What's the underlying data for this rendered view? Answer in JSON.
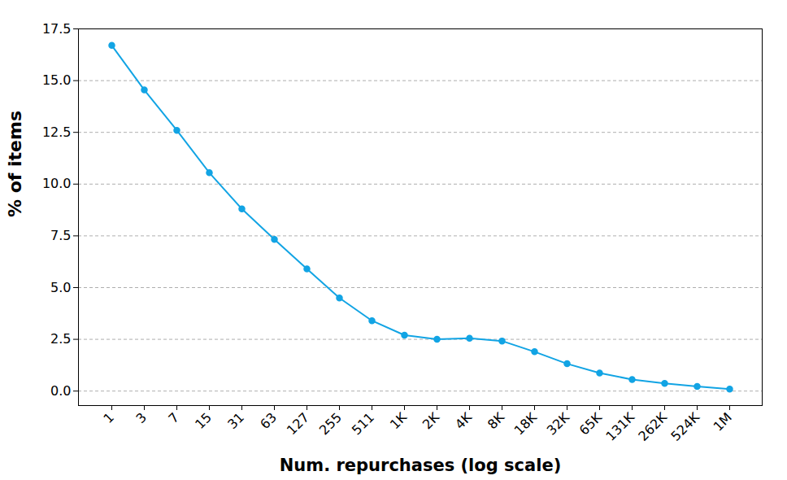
{
  "chart_data": {
    "type": "line",
    "x_label": "Num. repurchases (log scale)",
    "y_label": "% of items",
    "categories": [
      "1",
      "3",
      "7",
      "15",
      "31",
      "63",
      "127",
      "255",
      "511",
      "1K",
      "2K",
      "4K",
      "8K",
      "18K",
      "32K",
      "65K",
      "131K",
      "262K",
      "524K",
      "1M"
    ],
    "values": [
      16.7,
      14.55,
      12.6,
      10.55,
      8.8,
      7.33,
      5.9,
      4.5,
      3.4,
      2.7,
      2.5,
      2.55,
      2.42,
      1.9,
      1.32,
      0.87,
      0.56,
      0.37,
      0.22,
      0.1
    ],
    "color": "#12a4e4",
    "marker": "circle",
    "ylim": [
      -0.7,
      17.5
    ],
    "yticks": [
      {
        "value": 0,
        "label": "0.0"
      },
      2.5,
      {
        "value": 5,
        "label": "5.0"
      },
      7.5,
      {
        "value": 10,
        "label": "10.0"
      },
      12.5,
      {
        "value": 15,
        "label": "15.0"
      },
      17.5
    ],
    "grid": true
  }
}
